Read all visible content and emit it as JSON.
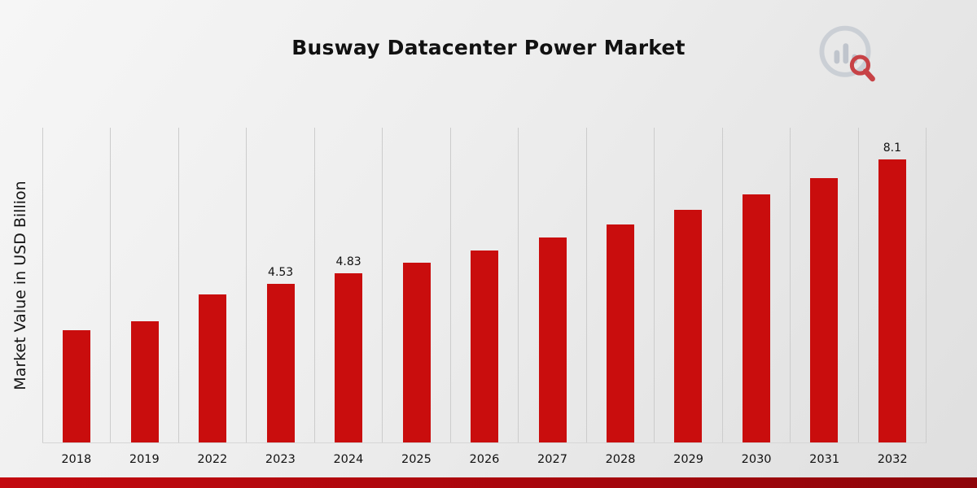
{
  "page": {
    "title": "Busway Datacenter Power Market",
    "ylabel": "Market Value in USD Billion"
  },
  "colors": {
    "bar": "#c90d0d",
    "grid": "#cccccc",
    "footer": "#a6060c",
    "background_start": "#f6f6f6",
    "background_end": "#dfdfdf"
  },
  "logo": {
    "name": "bar-chart-magnifier-logo"
  },
  "chart_data": {
    "type": "bar",
    "title": "Busway Datacenter Power Market",
    "xlabel": "",
    "ylabel": "Market Value in USD Billion",
    "categories": [
      "2018",
      "2019",
      "2022",
      "2023",
      "2024",
      "2025",
      "2026",
      "2027",
      "2028",
      "2029",
      "2030",
      "2031",
      "2032"
    ],
    "values": [
      3.2,
      3.46,
      4.24,
      4.53,
      4.83,
      5.15,
      5.49,
      5.85,
      6.24,
      6.65,
      7.09,
      7.56,
      8.1
    ],
    "data_labels": [
      "",
      "",
      "",
      "4.53",
      "4.83",
      "",
      "",
      "",
      "",
      "",
      "",
      "",
      "8.1"
    ],
    "ylim": [
      0,
      9
    ],
    "grid": "vertical",
    "legend": "none",
    "bar_color": "#c90d0d"
  }
}
